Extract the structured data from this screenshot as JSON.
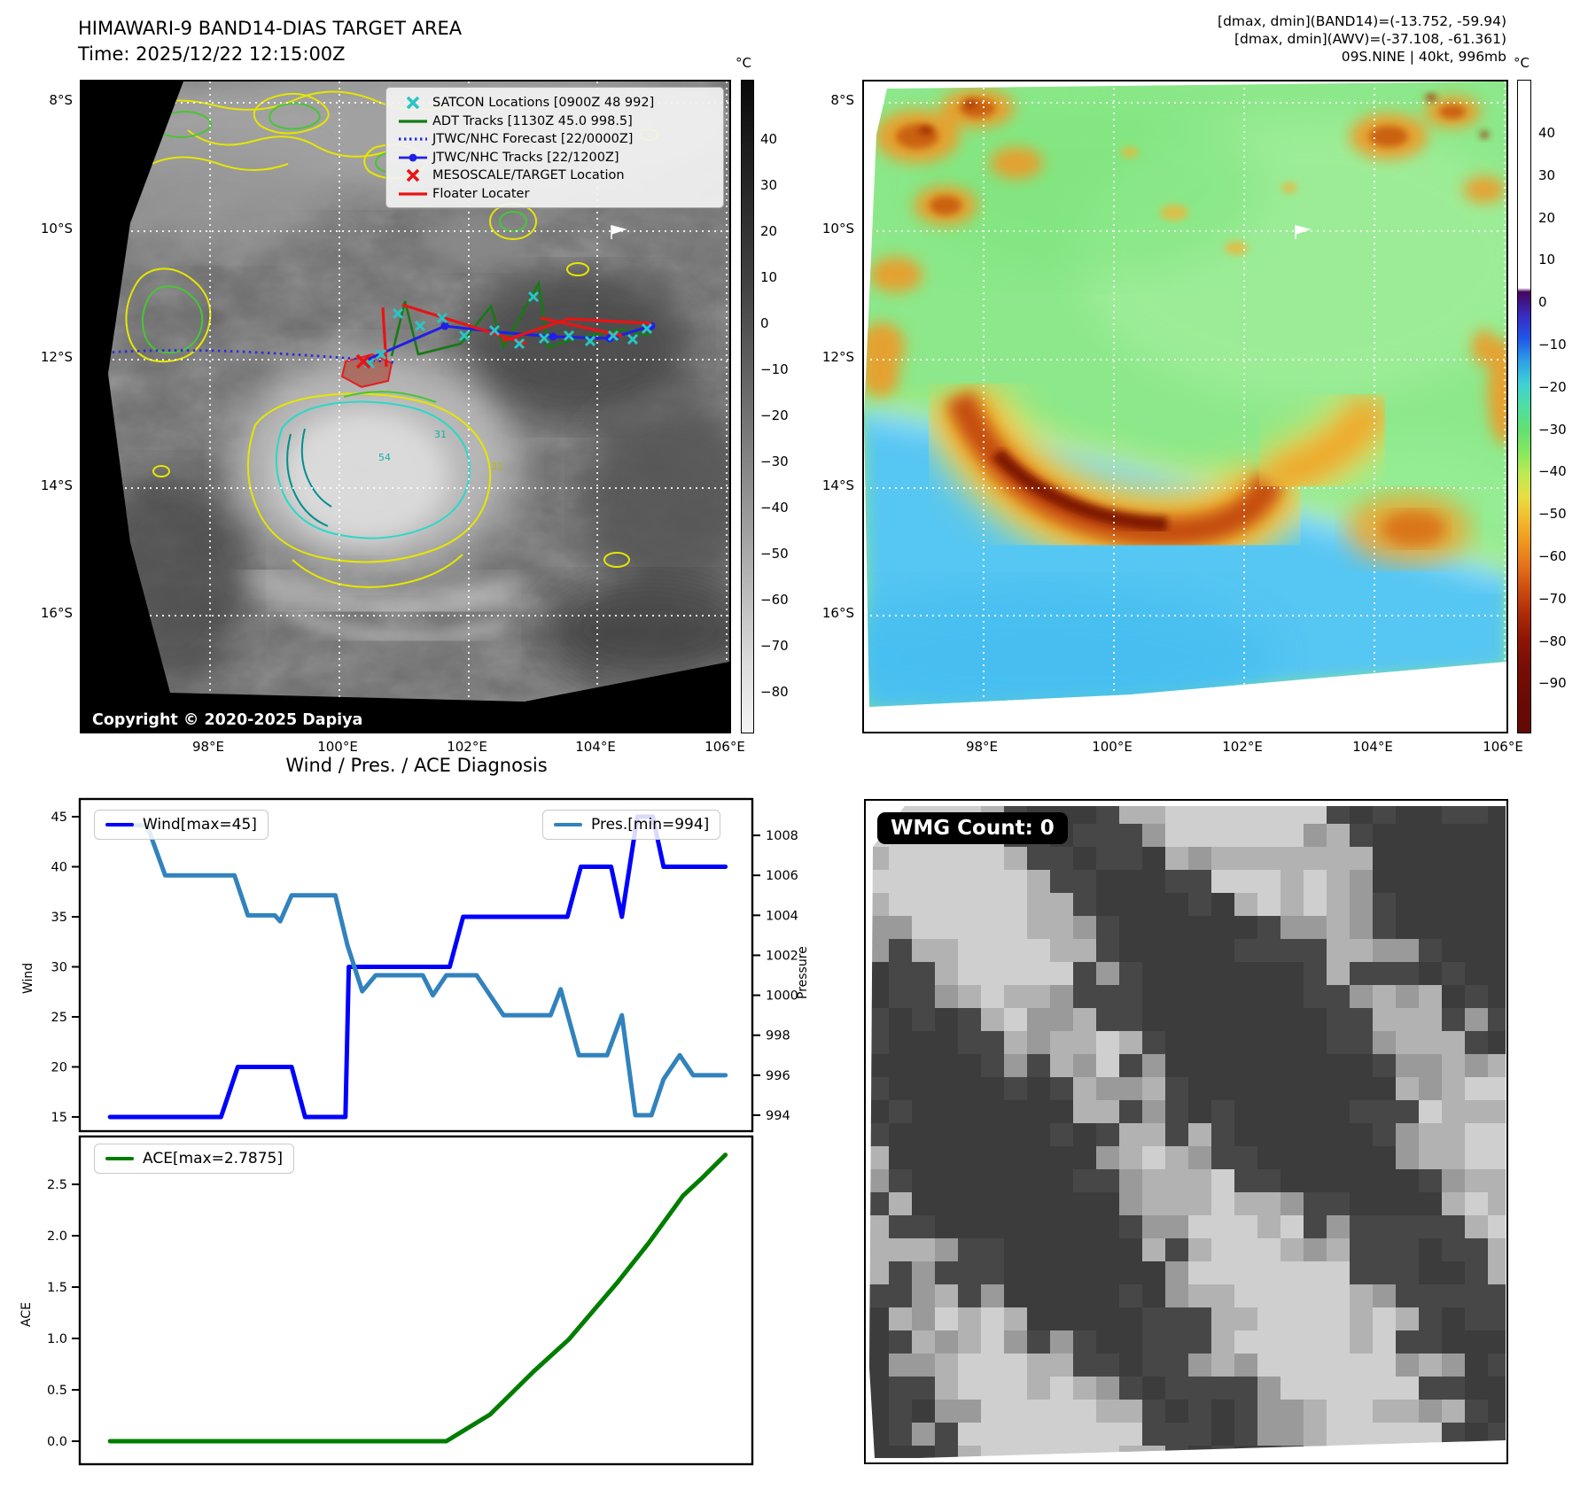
{
  "header": {
    "title_line1": "HIMAWARI-9 BAND14-DIAS TARGET AREA",
    "title_line2": "Time: 2025/12/22 12:15:00Z",
    "info_line1": "[dmax, dmin](BAND14)=(-13.752, -59.94)",
    "info_line2": "[dmax, dmin](AWV)=(-37.108, -61.361)",
    "info_line3": "09S.NINE | 40kt, 996mb"
  },
  "band14_map": {
    "lat_labels": [
      "8°S",
      "10°S",
      "12°S",
      "14°S",
      "16°S"
    ],
    "lon_labels": [
      "98°E",
      "100°E",
      "102°E",
      "104°E",
      "106°E"
    ],
    "legend": [
      {
        "label": "SATCON Locations [0900Z 48 992]",
        "symbol": "x-marker",
        "color": "#29c5c5"
      },
      {
        "label": "ADT Tracks [1130Z 45.0 998.5]",
        "symbol": "solid-line",
        "color": "#157a15"
      },
      {
        "label": "JTWC/NHC Forecast [22/0000Z]",
        "symbol": "dotted-line",
        "color": "#2b2bd9"
      },
      {
        "label": "JTWC/NHC Tracks [22/1200Z]",
        "symbol": "line-with-dot",
        "color": "#1f1fe8"
      },
      {
        "label": "MESOSCALE/TARGET Location",
        "symbol": "x-marker",
        "color": "#e81414"
      },
      {
        "label": "Floater Locater",
        "symbol": "solid-line",
        "color": "#e81414"
      }
    ],
    "contour_labels": [
      "31",
      "54",
      "31"
    ],
    "copyright": "Copyright © 2020-2025 Dapiya",
    "colorbar": {
      "title": "°C",
      "tick_labels": [
        "40",
        "30",
        "20",
        "10",
        "0",
        "−10",
        "−20",
        "−30",
        "−40",
        "−50",
        "−60",
        "−70",
        "−80"
      ]
    }
  },
  "awv_map": {
    "lat_labels": [
      "8°S",
      "10°S",
      "12°S",
      "14°S",
      "16°S"
    ],
    "lon_labels": [
      "98°E",
      "100°E",
      "102°E",
      "104°E",
      "106°E"
    ],
    "colorbar": {
      "title": "°C",
      "tick_labels": [
        "40",
        "30",
        "20",
        "10",
        "0",
        "−10",
        "−20",
        "−30",
        "−40",
        "−50",
        "−60",
        "−70",
        "−80",
        "−90"
      ]
    }
  },
  "wmg": {
    "count_label": "WMG Count: 0"
  },
  "chart_data": [
    {
      "type": "line",
      "title": "Wind / Pres. / ACE Diagnosis",
      "legend_positions": [
        "top-left",
        "top-right"
      ],
      "series": [
        {
          "name": "Wind[max=45]",
          "color": "#0000ff",
          "axis": "left",
          "x": [
            0.045,
            0.21,
            0.235,
            0.315,
            0.335,
            0.395,
            0.4,
            0.55,
            0.57,
            0.725,
            0.745,
            0.79,
            0.806,
            0.829,
            0.852,
            0.868,
            0.96
          ],
          "values": [
            15,
            15,
            20,
            20,
            15,
            15,
            30,
            30,
            35,
            35,
            40,
            40,
            35,
            45,
            45,
            40,
            40
          ]
        },
        {
          "name": "Pres.[min=994]",
          "color": "#3182bd",
          "axis": "right",
          "x": [
            0.045,
            0.1,
            0.127,
            0.23,
            0.25,
            0.29,
            0.298,
            0.315,
            0.38,
            0.398,
            0.42,
            0.44,
            0.51,
            0.525,
            0.545,
            0.59,
            0.63,
            0.7,
            0.715,
            0.742,
            0.784,
            0.806,
            0.826,
            0.85,
            0.868,
            0.892,
            0.912,
            0.96
          ],
          "values": [
            1008.5,
            1008.5,
            1006,
            1006,
            1004,
            1004,
            1003.7,
            1005,
            1005,
            1002.5,
            1000.2,
            1001,
            1001,
            1000,
            1001,
            1001,
            999,
            999,
            1000.3,
            997,
            997,
            999,
            994,
            994,
            995.8,
            997,
            996,
            996
          ]
        }
      ],
      "left_axis": {
        "label": "Wind",
        "ticks": [
          "15",
          "20",
          "25",
          "30",
          "35",
          "40",
          "45"
        ],
        "tick_values": [
          15,
          20,
          25,
          30,
          35,
          40,
          45
        ],
        "range": [
          13.58,
          46.77
        ]
      },
      "right_axis": {
        "label": "Pressure",
        "ticks": [
          "994",
          "996",
          "998",
          "1000",
          "1002",
          "1004",
          "1006",
          "1008"
        ],
        "tick_values": [
          994,
          996,
          998,
          1000,
          1002,
          1004,
          1006,
          1008
        ],
        "range": [
          993.2,
          1009.82
        ]
      }
    },
    {
      "type": "line",
      "legend_positions": [
        "top-left"
      ],
      "series": [
        {
          "name": "ACE[max=2.7875]",
          "color": "#007d00",
          "axis": "left",
          "x": [
            0.045,
            0.545,
            0.61,
            0.675,
            0.727,
            0.8,
            0.846,
            0.897,
            0.925,
            0.96
          ],
          "values": [
            0,
            0,
            0.26,
            0.68,
            0.99,
            1.55,
            1.93,
            2.39,
            2.56,
            2.7875
          ]
        }
      ],
      "left_axis": {
        "label": "ACE",
        "ticks": [
          "0.0",
          "0.5",
          "1.0",
          "1.5",
          "2.0",
          "2.5"
        ],
        "tick_values": [
          0,
          0.5,
          1,
          1.5,
          2,
          2.5
        ],
        "range": [
          -0.224,
          2.966
        ]
      }
    }
  ]
}
